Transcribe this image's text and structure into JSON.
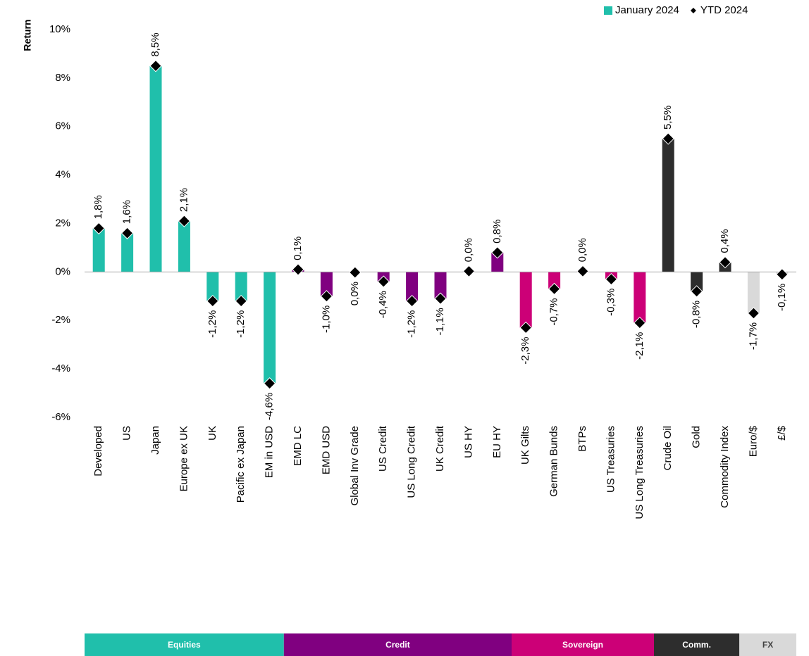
{
  "chart_data": {
    "type": "bar",
    "y_label": "Return",
    "categories": [
      "Developed",
      "US",
      "Japan",
      "Europe ex UK",
      "UK",
      "Pacific ex Japan",
      "EM in USD",
      "EMD LC",
      "EMD USD",
      "Global Inv Grade",
      "US Credit",
      "US Long Credit",
      "UK Credit",
      "US HY",
      "EU HY",
      "UK Gilts",
      "German Bunds",
      "BTPs",
      "US Treasuries",
      "US Long Treasuries",
      "Crude Oil",
      "Gold",
      "Commodity Index",
      "Euro/$",
      "£/$"
    ],
    "series": [
      {
        "name": "January 2024",
        "type": "bar",
        "color": "#20bfab",
        "values": [
          1.8,
          1.6,
          8.5,
          2.1,
          -1.2,
          -1.2,
          -4.6,
          0.1,
          -1.0,
          -0.02,
          -0.4,
          -1.2,
          -1.1,
          0.03,
          0.8,
          -2.3,
          -0.7,
          0.03,
          -0.3,
          -2.1,
          5.5,
          -0.8,
          0.4,
          -1.7,
          -0.1
        ]
      },
      {
        "name": "YTD 2024",
        "type": "scatter",
        "color": "#000000",
        "values": [
          1.8,
          1.6,
          8.5,
          2.1,
          -1.2,
          -1.2,
          -4.6,
          0.1,
          -1.0,
          -0.02,
          -0.4,
          -1.2,
          -1.1,
          0.03,
          0.8,
          -2.3,
          -0.7,
          0.03,
          -0.3,
          -2.1,
          5.5,
          -0.8,
          0.4,
          -1.7,
          -0.1
        ],
        "value_labels": [
          "1,8%",
          "1,6%",
          "8,5%",
          "2,1%",
          "-1,2%",
          "-1,2%",
          "-4,6%",
          "0,1%",
          "-1,0%",
          "0,0%",
          "-0,4%",
          "-1,2%",
          "-1,1%",
          "0,0%",
          "0,8%",
          "-2,3%",
          "-0,7%",
          "0,0%",
          "-0,3%",
          "-2,1%",
          "5,5%",
          "-0,8%",
          "0,4%",
          "-1,7%",
          "-0,1%"
        ]
      }
    ],
    "groups": [
      {
        "name": "Equities",
        "size": 7,
        "color": "#20bfab",
        "text_color": "#ffffff"
      },
      {
        "name": "Credit",
        "size": 8,
        "color": "#800080",
        "text_color": "#ffffff"
      },
      {
        "name": "Sovereign",
        "size": 5,
        "color": "#cc0077",
        "text_color": "#ffffff"
      },
      {
        "name": "Comm.",
        "size": 3,
        "color": "#2d2d2d",
        "text_color": "#ffffff"
      },
      {
        "name": "FX",
        "size": 2,
        "color": "#d9d9d9",
        "text_color": "#404040"
      }
    ],
    "ylim": [
      -6,
      10
    ],
    "yticks": [
      {
        "value": -6,
        "label": "-6%"
      },
      {
        "value": -4,
        "label": "-4%"
      },
      {
        "value": -2,
        "label": "-2%"
      },
      {
        "value": 0,
        "label": "0%"
      },
      {
        "value": 2,
        "label": "2%"
      },
      {
        "value": 4,
        "label": "4%"
      },
      {
        "value": 6,
        "label": "6%"
      },
      {
        "value": 8,
        "label": "8%"
      },
      {
        "value": 10,
        "label": "10%"
      }
    ],
    "legend": "top-right"
  }
}
